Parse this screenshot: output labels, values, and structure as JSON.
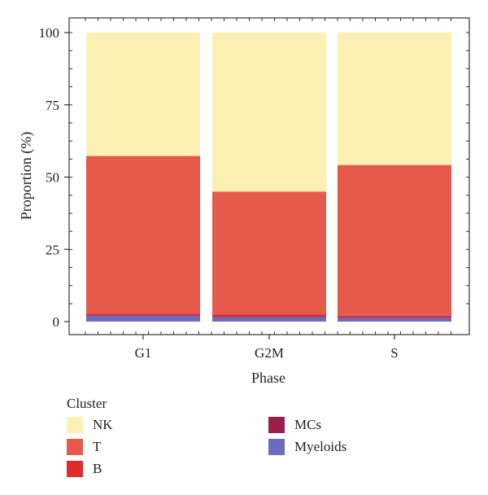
{
  "chart_data": {
    "type": "bar",
    "stacked": true,
    "xlabel": "Phase",
    "ylabel": "Proportion (%)",
    "ylim": [
      0,
      100
    ],
    "yticks": [
      0,
      25,
      50,
      75,
      100
    ],
    "categories": [
      "G1",
      "G2M",
      "S"
    ],
    "series": [
      {
        "name": "Myeloids",
        "color": "#6b6bbf",
        "values": [
          2.0,
          1.5,
          1.3
        ]
      },
      {
        "name": "MCs",
        "color": "#9b1f4a",
        "values": [
          0.3,
          0.4,
          0.3
        ]
      },
      {
        "name": "B",
        "color": "#e02b2b",
        "values": [
          0.5,
          0.6,
          0.4
        ]
      },
      {
        "name": "T",
        "color": "#e55a4a",
        "values": [
          54.5,
          42.5,
          52.2
        ]
      },
      {
        "name": "NK",
        "color": "#fcf1b3",
        "values": [
          42.7,
          55.0,
          45.8
        ]
      }
    ],
    "grid": false,
    "legend": {
      "title": "Cluster",
      "placement": "bottom",
      "entries": [
        "NK",
        "T",
        "B",
        "MCs",
        "Myeloids"
      ]
    }
  }
}
